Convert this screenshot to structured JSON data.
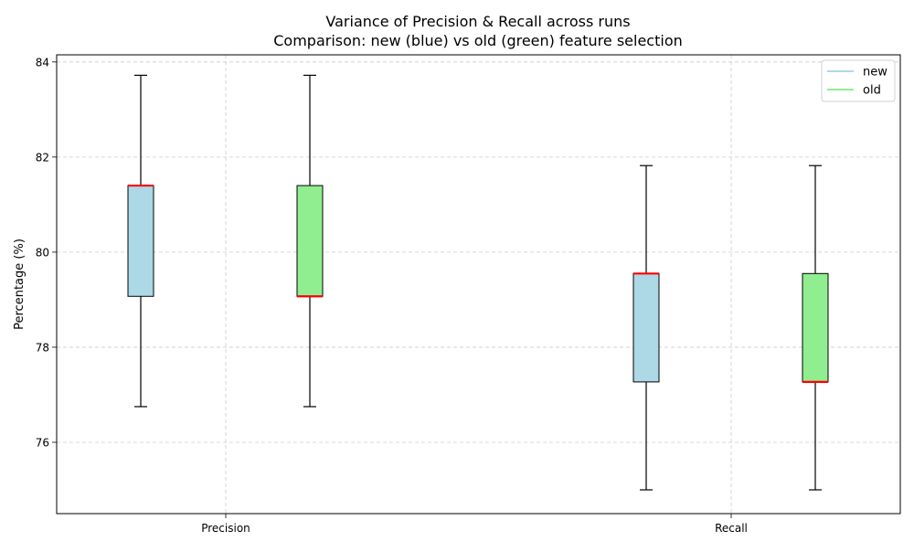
{
  "chart_data": {
    "type": "box",
    "title": "Variance of Precision & Recall across runs",
    "subtitle": "Comparison: new (blue) vs old (green) feature selection",
    "xlabel": "",
    "ylabel": "Percentage (%)",
    "categories": [
      "Precision",
      "Recall"
    ],
    "ylim": [
      74.5,
      84.15
    ],
    "yticks": [
      76,
      78,
      80,
      82,
      84
    ],
    "grid": true,
    "legend_position": "upper-right",
    "median_color": "#ff0000",
    "series": [
      {
        "name": "new",
        "color": "#add8e6",
        "boxes": [
          {
            "whisker_low": 76.75,
            "q1": 79.07,
            "median": 81.4,
            "q3": 81.4,
            "whisker_high": 83.72
          },
          {
            "whisker_low": 75.0,
            "q1": 77.27,
            "median": 79.55,
            "q3": 79.55,
            "whisker_high": 81.82
          }
        ]
      },
      {
        "name": "old",
        "color": "#90ee90",
        "boxes": [
          {
            "whisker_low": 76.75,
            "q1": 79.07,
            "median": 79.07,
            "q3": 81.4,
            "whisker_high": 83.72
          },
          {
            "whisker_low": 75.0,
            "q1": 77.27,
            "median": 77.27,
            "q3": 79.55,
            "whisker_high": 81.82
          }
        ]
      }
    ]
  }
}
